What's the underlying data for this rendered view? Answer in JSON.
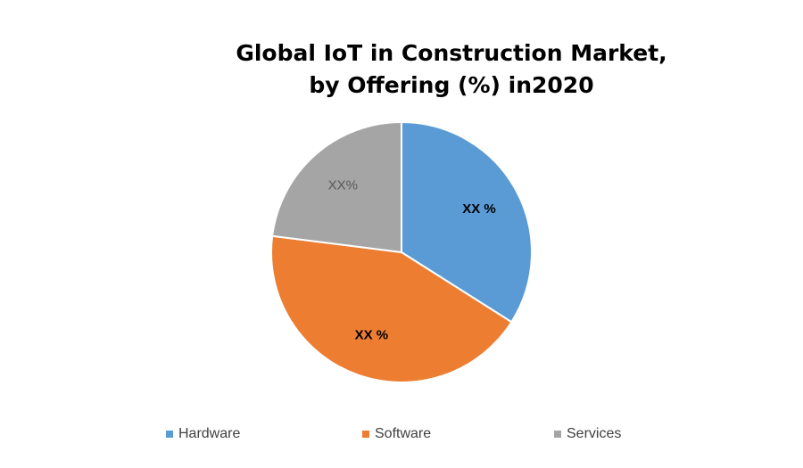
{
  "chart_data": {
    "type": "pie",
    "title_line_1": "Global IoT in Construction Market,",
    "title_line_2": "by Offering (%) in2020",
    "categories": [
      "Hardware",
      "Software",
      "Services"
    ],
    "values": [
      34,
      43,
      23
    ],
    "slice_labels": [
      "XX %",
      "XX %",
      "XX%"
    ],
    "colors": [
      "#5B9BD5",
      "#ED7D31",
      "#A5A5A5"
    ],
    "label_colors": [
      "#000000",
      "#000000",
      "#595959"
    ],
    "label_bold": [
      true,
      true,
      false
    ],
    "start_angle_deg": 0,
    "direction": "clockwise",
    "legend_position": "bottom"
  }
}
